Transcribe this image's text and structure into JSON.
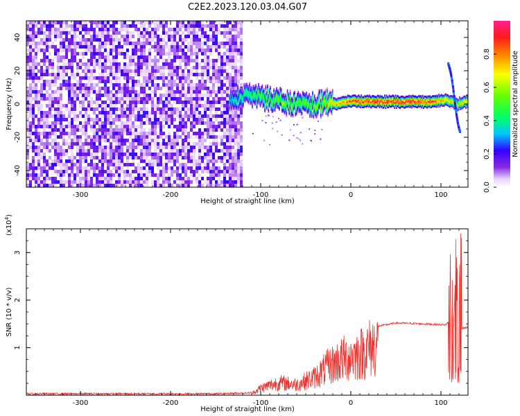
{
  "title": "C2E2.2023.120.03.04.G07",
  "chart_data": [
    {
      "type": "heatmap",
      "xlabel": "Height of straight line (km)",
      "ylabel": "Frequency (Hz)",
      "xlim": [
        -360,
        130
      ],
      "ylim": [
        -50,
        50
      ],
      "x_ticks": [
        -300,
        -200,
        -100,
        0,
        100
      ],
      "x_tick_labels": [
        "-300",
        "-200",
        "-100",
        "0",
        "100"
      ],
      "y_ticks": [
        -40,
        -20,
        0,
        20,
        40
      ],
      "y_tick_labels": [
        "-40",
        "-20",
        "0",
        "20",
        "40"
      ],
      "noise_region_x": [
        -360,
        -120
      ],
      "ridge": [
        {
          "x": -135,
          "freq": 4,
          "amp": 0.35
        },
        {
          "x": -110,
          "freq": 5,
          "amp": 0.45
        },
        {
          "x": -90,
          "freq": 3,
          "amp": 0.5
        },
        {
          "x": -70,
          "freq": 1,
          "amp": 0.55
        },
        {
          "x": -50,
          "freq": -1,
          "amp": 0.5
        },
        {
          "x": -30,
          "freq": 1,
          "amp": 0.6
        },
        {
          "x": -15,
          "freq": 0,
          "amp": 0.75
        },
        {
          "x": 0,
          "freq": 2,
          "amp": 0.85
        },
        {
          "x": 30,
          "freq": 1.5,
          "amp": 0.9
        },
        {
          "x": 60,
          "freq": 1.5,
          "amp": 0.9
        },
        {
          "x": 90,
          "freq": 1.5,
          "amp": 0.9
        },
        {
          "x": 105,
          "freq": 3,
          "amp": 0.7
        },
        {
          "x": 118,
          "freq": 0,
          "amp": 0.6
        },
        {
          "x": 130,
          "freq": 2,
          "amp": 0.75
        }
      ],
      "spur": {
        "x": [
          107,
          120
        ],
        "freq": [
          25,
          -15
        ]
      },
      "grid": false
    },
    {
      "type": "line",
      "xlabel": "Height of straight line (km)",
      "ylabel": "SNR (10 * v/v)",
      "scale_label": "(x10",
      "scale_exponent": "4",
      "scale_close": ")",
      "xlim": [
        -360,
        130
      ],
      "ylim": [
        0,
        3.5
      ],
      "x_ticks": [
        -300,
        -200,
        -100,
        0,
        100
      ],
      "x_tick_labels": [
        "-300",
        "-200",
        "-100",
        "0",
        "100"
      ],
      "y_ticks": [
        1,
        2,
        3
      ],
      "y_tick_labels": [
        "1",
        "2",
        "3"
      ],
      "color": "#e8322e",
      "envelope": [
        {
          "x": -360,
          "y": 0.03
        },
        {
          "x": -150,
          "y": 0.03
        },
        {
          "x": -110,
          "y": 0.05
        },
        {
          "x": -100,
          "y": 0.2
        },
        {
          "x": -80,
          "y": 0.35
        },
        {
          "x": -60,
          "y": 0.3
        },
        {
          "x": -40,
          "y": 0.5
        },
        {
          "x": -25,
          "y": 0.8
        },
        {
          "x": -10,
          "y": 1.0
        },
        {
          "x": 10,
          "y": 1.15
        },
        {
          "x": 30,
          "y": 1.45
        },
        {
          "x": 50,
          "y": 1.52
        },
        {
          "x": 80,
          "y": 1.5
        },
        {
          "x": 105,
          "y": 1.48
        },
        {
          "x": 112,
          "y": 1.6
        },
        {
          "x": 118,
          "y": 2.2
        },
        {
          "x": 121,
          "y": 1.4
        },
        {
          "x": 130,
          "y": 1.42
        }
      ],
      "grid": false
    }
  ],
  "colorbar": {
    "label": "Normalized spectral amplitude",
    "range": [
      0,
      1
    ],
    "ticks": [
      "0.0",
      "0.2",
      "0.4",
      "0.6",
      "0.8"
    ]
  }
}
